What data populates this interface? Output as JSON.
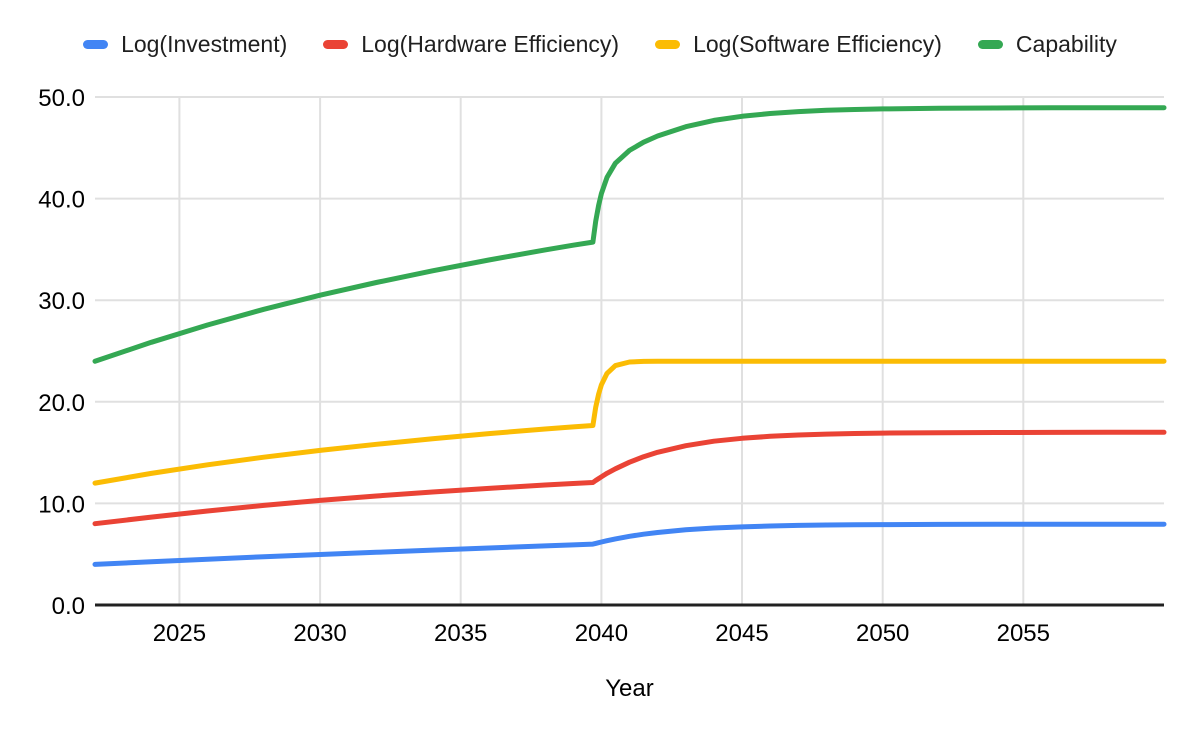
{
  "legend_position": "top",
  "chart_data": {
    "type": "line",
    "title": "",
    "xlabel": "Year",
    "ylabel": "",
    "xlim": [
      2022,
      2060
    ],
    "ylim": [
      0,
      50
    ],
    "grid": true,
    "legend_position": "top",
    "x_ticks": [
      2025,
      2030,
      2035,
      2040,
      2045,
      2050,
      2055
    ],
    "y_tick_labels": [
      "0.0",
      "10.0",
      "20.0",
      "30.0",
      "40.0",
      "50.0"
    ],
    "axis_color": "#212121",
    "gridline_color": "#e0e0e0",
    "x": [
      2022,
      2024,
      2026,
      2028,
      2030,
      2032,
      2034,
      2036,
      2038,
      2039,
      2039.7,
      2039.8,
      2039.9,
      2040,
      2040.2,
      2040.5,
      2041,
      2041.5,
      2042,
      2043,
      2044,
      2045,
      2046,
      2047,
      2048,
      2049,
      2050,
      2052,
      2054,
      2056,
      2058,
      2060
    ],
    "series": [
      {
        "name": "Log(Investment)",
        "color": "#4285F4",
        "values": [
          4.0,
          4.26,
          4.51,
          4.75,
          4.97,
          5.19,
          5.4,
          5.61,
          5.82,
          5.92,
          5.99,
          6.06,
          6.13,
          6.2,
          6.33,
          6.51,
          6.76,
          6.97,
          7.14,
          7.4,
          7.58,
          7.69,
          7.78,
          7.83,
          7.87,
          7.89,
          7.91,
          7.93,
          7.94,
          7.95,
          7.95,
          7.95
        ]
      },
      {
        "name": "Log(Hardware Efficiency)",
        "color": "#EA4335",
        "values": [
          8.0,
          8.65,
          9.25,
          9.8,
          10.3,
          10.73,
          11.12,
          11.48,
          11.81,
          11.96,
          12.06,
          12.25,
          12.44,
          12.62,
          12.96,
          13.41,
          14.06,
          14.6,
          15.03,
          15.68,
          16.12,
          16.41,
          16.6,
          16.73,
          16.82,
          16.88,
          16.92,
          16.96,
          16.98,
          16.99,
          17.0,
          17.0
        ]
      },
      {
        "name": "Log(Software Efficiency)",
        "color": "#FBBC04",
        "values": [
          12.0,
          12.95,
          13.8,
          14.55,
          15.22,
          15.82,
          16.37,
          16.87,
          17.32,
          17.53,
          17.67,
          19.46,
          20.75,
          21.67,
          22.8,
          23.56,
          23.92,
          23.98,
          23.99,
          24.0,
          24.0,
          24.0,
          24.0,
          24.0,
          24.0,
          24.0,
          24.0,
          24.0,
          24.0,
          24.0,
          24.0,
          24.0
        ]
      },
      {
        "name": "Capability",
        "color": "#34A853",
        "values": [
          24.0,
          25.86,
          27.56,
          29.1,
          30.49,
          31.74,
          32.89,
          33.96,
          34.95,
          35.41,
          35.72,
          37.77,
          39.32,
          40.49,
          42.09,
          43.48,
          44.74,
          45.55,
          46.16,
          47.08,
          47.7,
          48.1,
          48.38,
          48.56,
          48.69,
          48.77,
          48.83,
          48.89,
          48.92,
          48.94,
          48.95,
          48.95
        ]
      }
    ]
  }
}
